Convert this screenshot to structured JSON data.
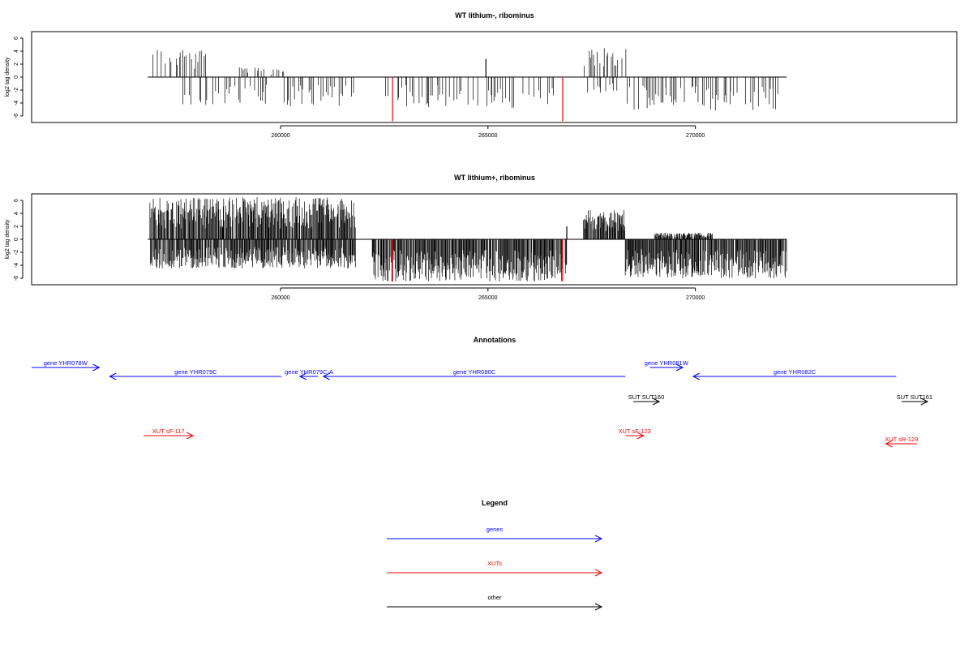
{
  "chart_data": [
    {
      "type": "bar",
      "title": "WT lithium-, ribominus",
      "ylabel": "log2 tag density",
      "xlim": [
        254000,
        276300
      ],
      "ylim": [
        -7,
        7
      ],
      "yticks": [
        -6,
        -4,
        -2,
        0,
        2,
        4,
        6
      ],
      "xticks": [
        260000,
        265000,
        270000
      ],
      "grid": false,
      "baseline": [
        256800,
        272200
      ],
      "density": "sparse",
      "series_regions": [
        {
          "strand": "+",
          "start": 256850,
          "end": 258200,
          "max": 4.5
        },
        {
          "strand": "+",
          "start": 259000,
          "end": 260100,
          "max": 1.5
        },
        {
          "strand": "+",
          "start": 267300,
          "end": 268300,
          "max": 4.5
        },
        {
          "strand": "-",
          "start": 257600,
          "end": 261800,
          "max": 4.5
        },
        {
          "strand": "-",
          "start": 262500,
          "end": 266600,
          "max": 4.8
        },
        {
          "strand": "-",
          "start": 267400,
          "end": 268100,
          "max": 2.5
        },
        {
          "strand": "-",
          "start": 268300,
          "end": 272200,
          "max": 5.3
        }
      ],
      "spikes": [
        {
          "x": 264950,
          "value": 2.8,
          "color": "#000000"
        },
        {
          "x": 262700,
          "value": -6.8,
          "color": "#ff0000"
        },
        {
          "x": 266800,
          "value": -6.8,
          "color": "#ff0000"
        }
      ]
    },
    {
      "type": "bar",
      "title": "WT lithium+, ribominus",
      "ylabel": "log2 tag density",
      "xlim": [
        254000,
        276300
      ],
      "ylim": [
        -7,
        7
      ],
      "yticks": [
        -6,
        -4,
        -2,
        0,
        2,
        4,
        6
      ],
      "xticks": [
        260000,
        265000,
        270000
      ],
      "grid": false,
      "baseline": [
        256800,
        272200
      ],
      "density": "dense",
      "series_regions": [
        {
          "strand": "+",
          "start": 256850,
          "end": 261800,
          "max": 6.5
        },
        {
          "strand": "+",
          "start": 267300,
          "end": 268300,
          "max": 4.5
        },
        {
          "strand": "+",
          "start": 269000,
          "end": 270400,
          "max": 1.0
        },
        {
          "strand": "-",
          "start": 256850,
          "end": 261800,
          "max": 4.5
        },
        {
          "strand": "-",
          "start": 262200,
          "end": 266900,
          "max": 6.5
        },
        {
          "strand": "-",
          "start": 268300,
          "end": 272200,
          "max": 6.0
        }
      ],
      "spikes": [
        {
          "x": 262700,
          "value": -6.5,
          "color": "#ff0000"
        },
        {
          "x": 266800,
          "value": -6.5,
          "color": "#ff0000"
        },
        {
          "x": 266900,
          "value": 2.0,
          "color": "#000000"
        }
      ]
    }
  ],
  "annotations": {
    "title": "Annotations",
    "features": [
      {
        "label": "gene YHR078W",
        "start": 254000,
        "end": 255300,
        "strand": "+",
        "color": "#0000ff",
        "row": 0
      },
      {
        "label": "gene YHR079C",
        "start": 255500,
        "end": 258800,
        "strand": "-",
        "color": "#0000ff",
        "row": 1
      },
      {
        "label": "gene YHR079C-A",
        "start": 259150,
        "end": 259500,
        "strand": "-",
        "color": "#0000ff",
        "row": 1
      },
      {
        "label": "gene YHR080C",
        "start": 259600,
        "end": 265400,
        "strand": "-",
        "color": "#0000ff",
        "row": 1
      },
      {
        "label": "gene YHR081W",
        "start": 265870,
        "end": 266500,
        "strand": "+",
        "color": "#0000ff",
        "row": 0
      },
      {
        "label": "gene YHR082C",
        "start": 266700,
        "end": 270600,
        "strand": "-",
        "color": "#0000ff",
        "row": 1
      },
      {
        "label": "SUT SUT160",
        "start": 265550,
        "end": 266050,
        "strand": "+",
        "color": "#000000",
        "row": 2
      },
      {
        "label": "SUT SUT161",
        "start": 270700,
        "end": 271200,
        "strand": "+",
        "color": "#000000",
        "row": 2
      },
      {
        "label": "XUT sF-117",
        "start": 256150,
        "end": 257100,
        "strand": "+",
        "color": "#ff0000",
        "row": 3
      },
      {
        "label": "XUT sF-123",
        "start": 265400,
        "end": 265750,
        "strand": "+",
        "color": "#ff0000",
        "row": 3
      },
      {
        "label": "XUT sR-129",
        "start": 270400,
        "end": 271000,
        "strand": "-",
        "color": "#ff0000",
        "row": 4
      }
    ]
  },
  "legend": {
    "title": "Legend",
    "items": [
      {
        "label": "genes",
        "color": "#0000ff"
      },
      {
        "label": "XUTs",
        "color": "#ff0000"
      },
      {
        "label": "other",
        "color": "#000000"
      }
    ]
  }
}
